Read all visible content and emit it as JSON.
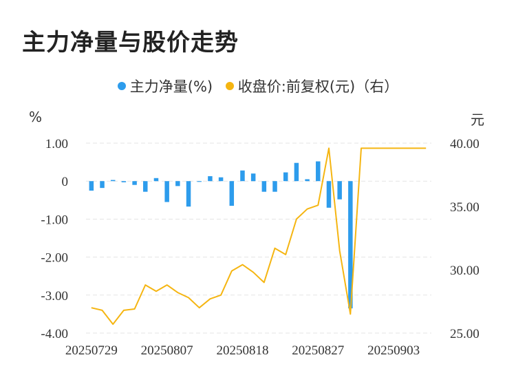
{
  "title": "主力净量与股价走势",
  "legend": [
    {
      "label": "主力净量(%)",
      "color": "#2d9cec"
    },
    {
      "label": "收盘价:前复权(元)（右）",
      "color": "#f5b511"
    }
  ],
  "left_unit": "%",
  "right_unit": "元",
  "chart_data": {
    "type": "bar",
    "x_tick_labels": [
      "20250729",
      "20250807",
      "20250818",
      "20250827",
      "20250903"
    ],
    "x_tick_indices": [
      0,
      7,
      14,
      21,
      28
    ],
    "left_axis": {
      "ticks": [
        1.0,
        0,
        -1.0,
        -2.0,
        -3.0,
        -4.0
      ],
      "tick_labels": [
        "1.00",
        "0",
        "-1.00",
        "-2.00",
        "-3.00",
        "-4.00"
      ],
      "range": [
        -4,
        1
      ]
    },
    "right_axis": {
      "ticks": [
        40,
        35,
        30,
        25
      ],
      "tick_labels": [
        "40.00",
        "35.00",
        "30.00",
        "25.00"
      ],
      "range": [
        25,
        40
      ]
    },
    "grid": true,
    "series": [
      {
        "name": "主力净量(%)",
        "type": "bar",
        "axis": "left",
        "color": "#2d9cec",
        "values": [
          -0.25,
          -0.18,
          0.03,
          -0.03,
          -0.1,
          -0.28,
          0.08,
          -0.55,
          -0.13,
          -0.67,
          -0.02,
          0.13,
          0.1,
          -0.65,
          0.28,
          0.2,
          -0.28,
          -0.28,
          0.23,
          0.48,
          0.05,
          0.52,
          -0.7,
          -0.48,
          -3.35,
          null,
          null,
          null,
          null,
          null,
          null,
          null
        ]
      },
      {
        "name": "收盘价:前复权(元)（右）",
        "type": "line",
        "axis": "right",
        "color": "#f5b511",
        "values": [
          27.0,
          26.8,
          25.7,
          26.8,
          26.9,
          28.8,
          28.3,
          28.8,
          28.2,
          27.8,
          27.0,
          27.7,
          28.0,
          29.9,
          30.4,
          29.8,
          29.0,
          31.7,
          31.2,
          34.0,
          34.8,
          35.1,
          39.6,
          31.5,
          26.5,
          39.6,
          39.6,
          39.6,
          39.6,
          39.6,
          39.6,
          39.6
        ]
      }
    ]
  }
}
